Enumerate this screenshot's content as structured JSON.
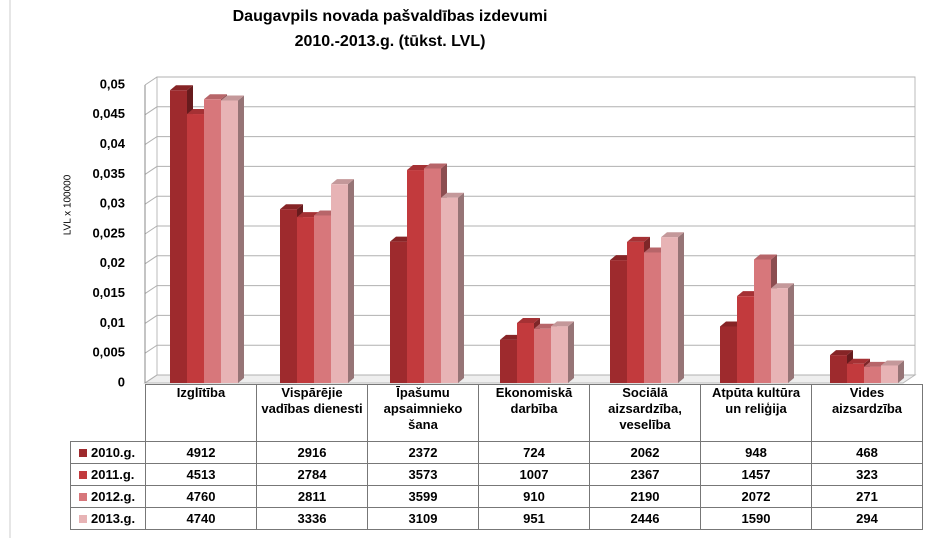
{
  "chart_data": {
    "type": "bar3d",
    "title": [
      "Daugavpils novada pašvaldības izdevumi",
      "2010.-2013.g. (tūkst. LVL)"
    ],
    "y_label": "LVL  x 100000",
    "categories": [
      "Izglītība",
      "Vispārējie vadības dienesti",
      "Īpašumu apsaimnieko šana",
      "Ekonomiskā darbība",
      "Sociālā aizsardzība, veselība",
      "Atpūta kultūra un reliģija",
      "Vides aizsardzība"
    ],
    "series": [
      {
        "name": "2010.g.",
        "color": "#9e2a2d",
        "values": [
          0.04912,
          0.02916,
          0.02372,
          0.00724,
          0.02062,
          0.00948,
          0.00468
        ],
        "value_labels": [
          "4912",
          "2916",
          "2372",
          "724",
          "2062",
          "948",
          "468"
        ]
      },
      {
        "name": "2011.g.",
        "color": "#c23a3d",
        "values": [
          0.04513,
          0.02784,
          0.03573,
          0.01007,
          0.02367,
          0.01457,
          0.00323
        ],
        "value_labels": [
          "4513",
          "2784",
          "3573",
          "1007",
          "2367",
          "1457",
          "323"
        ]
      },
      {
        "name": "2012.g.",
        "color": "#d7777b",
        "values": [
          0.0476,
          0.02811,
          0.03599,
          0.0091,
          0.0219,
          0.02072,
          0.00271
        ],
        "value_labels": [
          "4760",
          "2811",
          "3599",
          "910",
          "2190",
          "2072",
          "271"
        ]
      },
      {
        "name": "2013.g.",
        "color": "#e7b3b5",
        "values": [
          0.0474,
          0.03336,
          0.03109,
          0.00951,
          0.02446,
          0.0159,
          0.00294
        ],
        "value_labels": [
          "4740",
          "3336",
          "3109",
          "951",
          "2446",
          "1590",
          "294"
        ]
      }
    ],
    "ylim": [
      0,
      0.05
    ],
    "yticks": [
      0,
      {
        "value": 0.005,
        "label": "0,005"
      },
      {
        "value": 0.01,
        "label": "0,01"
      },
      {
        "value": 0.015,
        "label": "0,015"
      },
      {
        "value": 0.02,
        "label": "0,02"
      },
      {
        "value": 0.025,
        "label": "0,025"
      },
      {
        "value": 0.03,
        "label": "0,03"
      },
      {
        "value": 0.035,
        "label": "0,035"
      },
      {
        "value": 0.04,
        "label": "0,04"
      },
      {
        "value": 0.045,
        "label": "0,045"
      },
      {
        "value": 0.05,
        "label": "0,05"
      }
    ],
    "grid": true
  }
}
